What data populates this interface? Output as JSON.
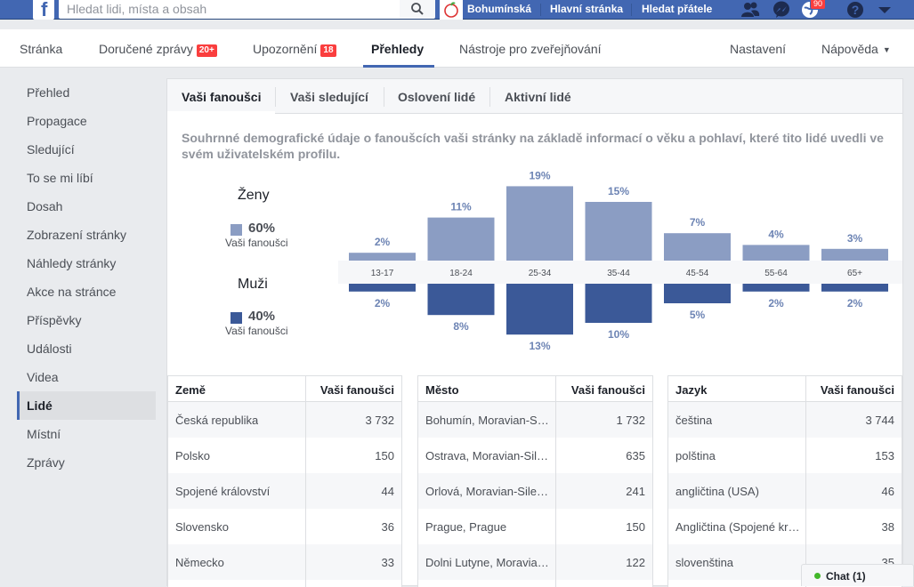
{
  "topbar": {
    "search_placeholder": "Hledat lidi, místa a obsah",
    "profile_name": "Bohumínská",
    "home_label": "Hlavní stránka",
    "find_friends_label": "Hledat přátele",
    "notification_count": "90"
  },
  "pagenav": {
    "page": "Stránka",
    "inbox": "Doručené zprávy",
    "inbox_badge": "20+",
    "notifications": "Upozornění",
    "notifications_badge": "18",
    "insights": "Přehledy",
    "publishing_tools": "Nástroje pro zveřejňování",
    "settings": "Nastavení",
    "help": "Nápověda"
  },
  "sidebar": {
    "items": [
      {
        "label": "Přehled"
      },
      {
        "label": "Propagace"
      },
      {
        "label": "Sledující"
      },
      {
        "label": "To se mi líbí"
      },
      {
        "label": "Dosah"
      },
      {
        "label": "Zobrazení stránky"
      },
      {
        "label": "Náhledy stránky"
      },
      {
        "label": "Akce na stránce"
      },
      {
        "label": "Příspěvky"
      },
      {
        "label": "Události"
      },
      {
        "label": "Videa"
      },
      {
        "label": "Lidé",
        "active": true
      },
      {
        "label": "Místní"
      },
      {
        "label": "Zprávy"
      }
    ]
  },
  "subtabs": {
    "fans": "Vaši fanoušci",
    "followers": "Vaši sledující",
    "reached": "Oslovení lidé",
    "engaged": "Aktivní lidé"
  },
  "description": "Souhrnné demografické údaje o fanoušcích vaši stránky na základě informací o věku a pohlaví, které tito lidé uvedli ve svém uživatelském profilu.",
  "gender": {
    "women_title": "Ženy",
    "women_pct": "60%",
    "women_sub": "Vaši fanoušci",
    "men_title": "Muži",
    "men_pct": "40%",
    "men_sub": "Vaši fanoušci",
    "women_color": "#8b9dc3",
    "men_color": "#3b5998"
  },
  "chart_data": {
    "type": "bar",
    "categories": [
      "13-17",
      "18-24",
      "25-34",
      "35-44",
      "45-54",
      "55-64",
      "65+"
    ],
    "series": [
      {
        "name": "Ženy",
        "values": [
          2,
          11,
          19,
          15,
          7,
          4,
          3
        ],
        "labels": [
          "2%",
          "11%",
          "19%",
          "15%",
          "7%",
          "4%",
          "3%"
        ]
      },
      {
        "name": "Muži",
        "values": [
          2,
          8,
          13,
          10,
          5,
          2,
          2
        ],
        "labels": [
          "2%",
          "8%",
          "13%",
          "10%",
          "5%",
          "2%",
          "2%"
        ]
      }
    ]
  },
  "tables": {
    "country": {
      "col1": "Země",
      "col2": "Vaši fanoušci",
      "rows": [
        {
          "name": "Česká republika",
          "value": "3 732"
        },
        {
          "name": "Polsko",
          "value": "150"
        },
        {
          "name": "Spojené království",
          "value": "44"
        },
        {
          "name": "Slovensko",
          "value": "36"
        },
        {
          "name": "Německo",
          "value": "33"
        }
      ]
    },
    "city": {
      "col1": "Město",
      "col2": "Vaši fanoušci",
      "rows": [
        {
          "name": "Bohumín, Moravian-Sil…",
          "value": "1 732"
        },
        {
          "name": "Ostrava, Moravian-Sile…",
          "value": "635"
        },
        {
          "name": "Orlová, Moravian-Silesi…",
          "value": "241"
        },
        {
          "name": "Prague, Prague",
          "value": "150"
        },
        {
          "name": "Dolni Lutyne, Moravian…",
          "value": "122"
        }
      ]
    },
    "language": {
      "col1": "Jazyk",
      "col2": "Vaši fanoušci",
      "rows": [
        {
          "name": "čeština",
          "value": "3 744"
        },
        {
          "name": "polština",
          "value": "153"
        },
        {
          "name": "angličtina (USA)",
          "value": "46"
        },
        {
          "name": "Angličtina (Spojené krá…",
          "value": "38"
        },
        {
          "name": "slovenština",
          "value": "35"
        }
      ]
    }
  },
  "chat": {
    "label": "Chat (1)"
  }
}
